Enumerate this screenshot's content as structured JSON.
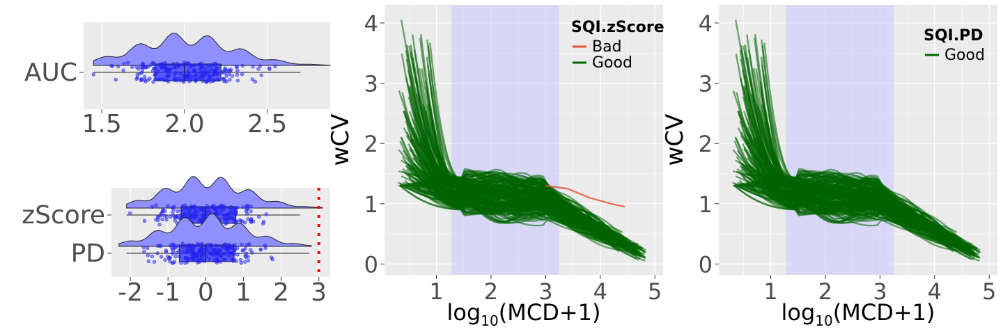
{
  "colors": {
    "panel_bg": "#ebebeb",
    "grid": "#ffffff",
    "violin_fill": "#8f8fff",
    "points": "#2222ee",
    "good_line": "#006400",
    "bad_line": "#e8503a",
    "shade": "#c8c8ff",
    "threshold": "#ff0000"
  },
  "chart_data": [
    {
      "id": "auc",
      "type": "raincloud",
      "categories": [
        "AUC"
      ],
      "x_ticks": [
        "1.5",
        "2.0",
        "2.5"
      ],
      "xlim": [
        1.39,
        2.88
      ],
      "series": [
        {
          "name": "AUC",
          "median": 2.0,
          "q1": 1.82,
          "q3": 2.22,
          "whisker_low": 1.45,
          "whisker_high": 2.7,
          "min": 1.45,
          "max": 2.88,
          "n_points": 200
        }
      ]
    },
    {
      "id": "quality",
      "type": "raincloud",
      "categories": [
        "zScore",
        "PD"
      ],
      "x_ticks": [
        "-2",
        "-1",
        "0",
        "1",
        "2",
        "3"
      ],
      "xlim": [
        -2.5,
        3.3
      ],
      "threshold_x": 3,
      "series": [
        {
          "name": "zScore",
          "median": 0.0,
          "q1": -0.65,
          "q3": 0.8,
          "whisker_low": -2.1,
          "whisker_high": 2.5,
          "min": -2.1,
          "max": 3.1,
          "n_points": 200
        },
        {
          "name": "PD",
          "median": 0.0,
          "q1": -0.7,
          "q3": 0.75,
          "whisker_low": -2.1,
          "whisker_high": 2.75,
          "min": -2.3,
          "max": 2.8,
          "n_points": 200
        }
      ]
    },
    {
      "id": "wcv_zscore",
      "type": "line",
      "xlabel": "log10(MCD+1)",
      "ylabel": "wCV",
      "x_ticks": [
        "1",
        "2",
        "3",
        "4",
        "5"
      ],
      "y_ticks": [
        "0",
        "1",
        "2",
        "3",
        "4"
      ],
      "xlim": [
        0.05,
        5.15
      ],
      "ylim": [
        -0.18,
        4.3
      ],
      "shaded_x": [
        1.28,
        3.25
      ],
      "legend": {
        "title": "SQI.zScore",
        "position": "top-right",
        "items": [
          "Bad",
          "Good"
        ]
      },
      "series": [
        {
          "name": "Good",
          "n_curves": 180,
          "x_range": [
            0.3,
            4.85
          ],
          "y_start": [
            1.3,
            4.05
          ],
          "y_end": [
            0.1,
            0.95
          ]
        },
        {
          "name": "Bad",
          "n_curves": 1,
          "points": [
            [
              3.0,
              1.3
            ],
            [
              3.4,
              1.25
            ],
            [
              3.8,
              1.1
            ],
            [
              4.2,
              1.0
            ],
            [
              4.45,
              0.95
            ]
          ]
        }
      ]
    },
    {
      "id": "wcv_pd",
      "type": "line",
      "xlabel": "log10(MCD+1)",
      "ylabel": "wCV",
      "x_ticks": [
        "1",
        "2",
        "3",
        "4",
        "5"
      ],
      "y_ticks": [
        "0",
        "1",
        "2",
        "3",
        "4"
      ],
      "xlim": [
        0.05,
        5.15
      ],
      "ylim": [
        -0.18,
        4.3
      ],
      "shaded_x": [
        1.28,
        3.25
      ],
      "legend": {
        "title": "SQI.PD",
        "position": "top-right",
        "items": [
          "Good"
        ]
      },
      "series": [
        {
          "name": "Good",
          "n_curves": 180,
          "x_range": [
            0.3,
            4.85
          ],
          "y_start": [
            1.3,
            4.05
          ],
          "y_end": [
            0.1,
            0.95
          ]
        }
      ]
    }
  ]
}
